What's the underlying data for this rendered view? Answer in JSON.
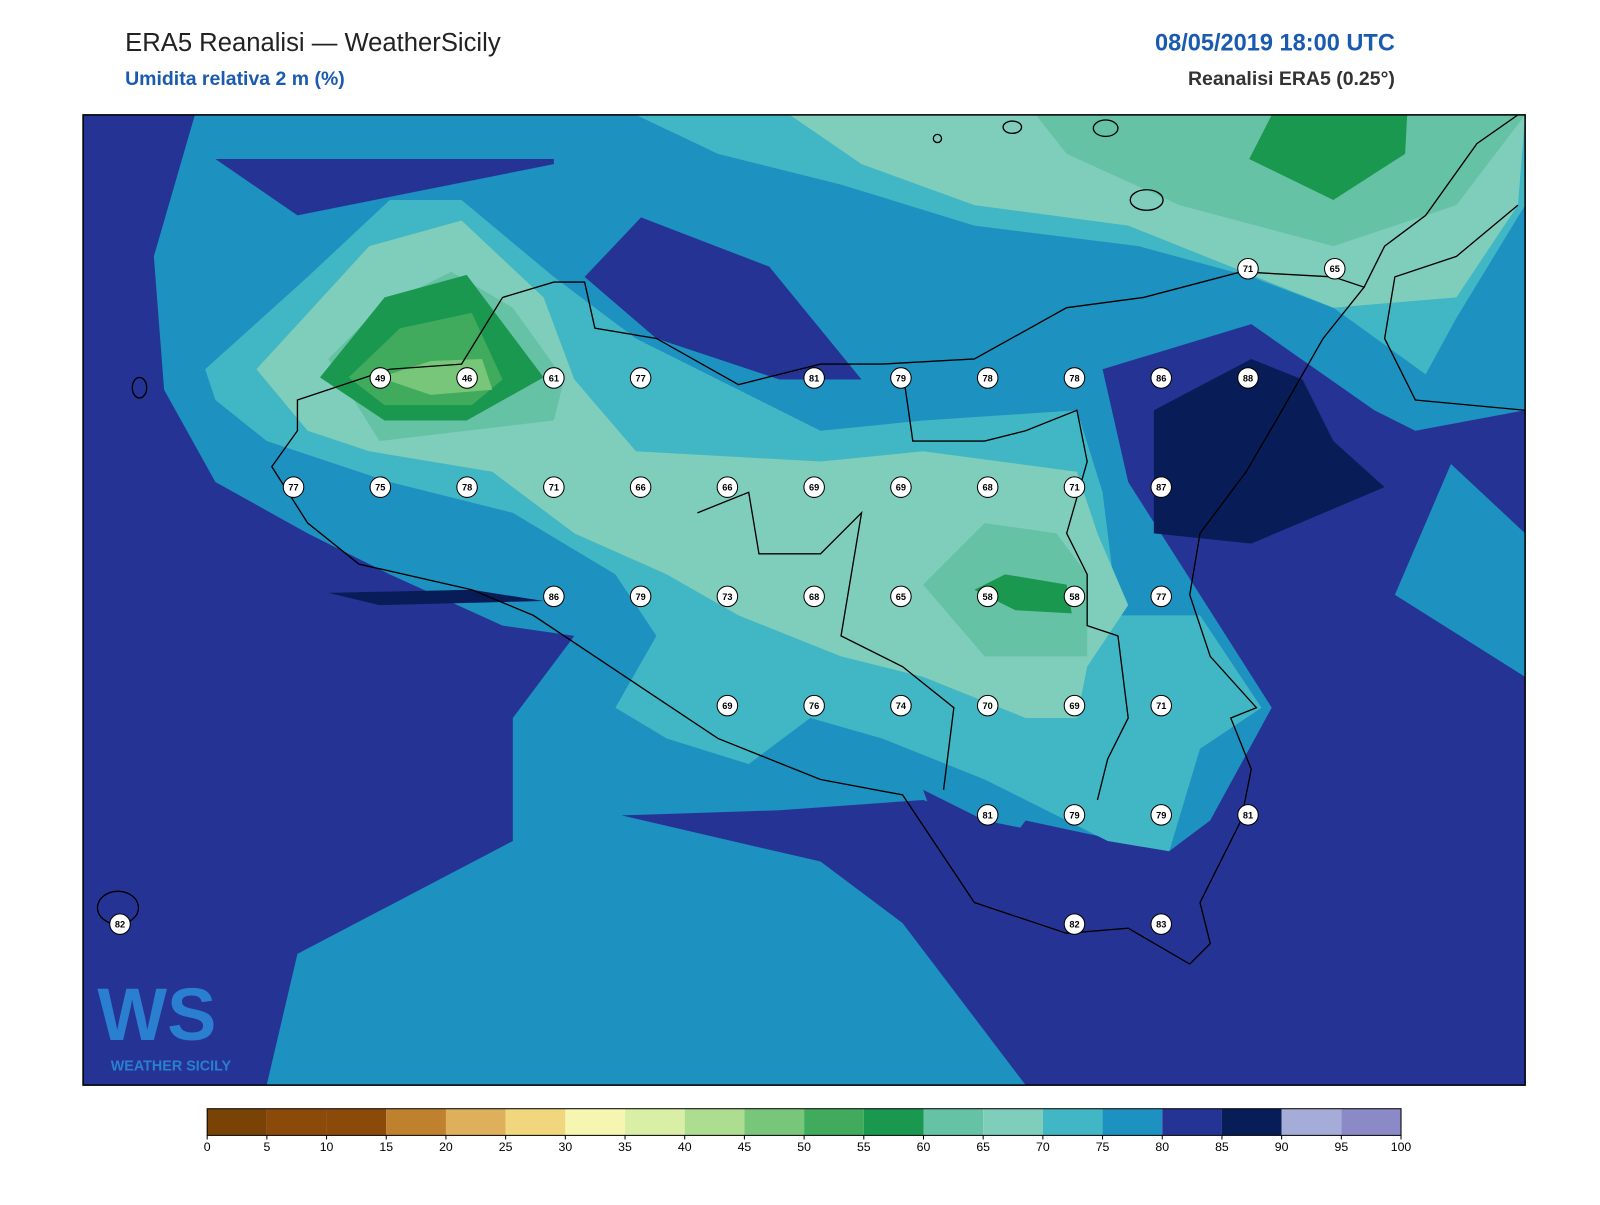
{
  "header": {
    "title": "ERA5 Reanalisi — WeatherSicily",
    "subtitle": "Umidita relativa 2 m (%)",
    "datetime": "08/05/2019 18:00 UTC",
    "source": "Reanalisi ERA5 (0.25°)"
  },
  "logo": {
    "mark": "WS",
    "text": "WEATHER SICILY"
  },
  "grid": [
    [
      null,
      null,
      null,
      null,
      null,
      null,
      null,
      null,
      null,
      null,
      null,
      null,
      null,
      71,
      65
    ],
    [
      null,
      null,
      null,
      49,
      46,
      61,
      77,
      null,
      81,
      79,
      78,
      78,
      86,
      88,
      null
    ],
    [
      null,
      null,
      77,
      75,
      78,
      71,
      66,
      66,
      69,
      69,
      68,
      71,
      87,
      null,
      null
    ],
    [
      null,
      null,
      null,
      null,
      null,
      86,
      79,
      73,
      68,
      65,
      58,
      58,
      77,
      null,
      null
    ],
    [
      null,
      null,
      null,
      null,
      null,
      null,
      null,
      69,
      76,
      74,
      70,
      69,
      71,
      null,
      null
    ],
    [
      null,
      null,
      null,
      null,
      null,
      null,
      null,
      null,
      null,
      null,
      81,
      79,
      79,
      81,
      null
    ],
    [
      82,
      null,
      null,
      null,
      null,
      null,
      null,
      null,
      null,
      null,
      null,
      82,
      83,
      null,
      null
    ]
  ],
  "colorbar": {
    "ticks": [
      0,
      5,
      10,
      15,
      20,
      25,
      30,
      35,
      40,
      45,
      50,
      55,
      60,
      65,
      70,
      75,
      80,
      85,
      90,
      95,
      100
    ],
    "colors": [
      "#7a4306",
      "#8c4a0a",
      "#8c4a0a",
      "#bf812d",
      "#dfb05c",
      "#f0d67c",
      "#f6f6b0",
      "#d9efa6",
      "#addd8e",
      "#78c679",
      "#41ab5d",
      "#1a9850",
      "#66c2a4",
      "#7fcdbb",
      "#41b6c4",
      "#1d91c0",
      "#253494",
      "#081d58",
      "#a5acd8",
      "#8c89c8"
    ]
  }
}
